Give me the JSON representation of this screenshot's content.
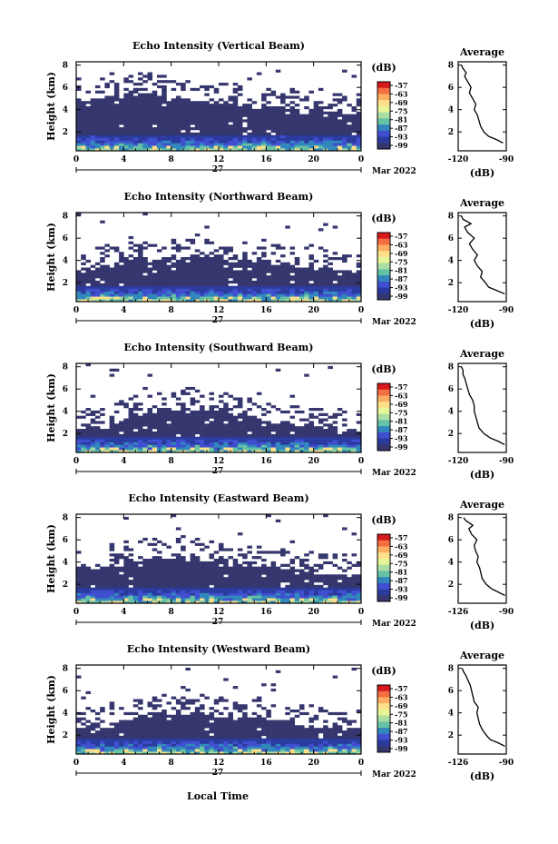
{
  "figure": {
    "xlabel": "Local Time",
    "date_label": "Mar 2022",
    "day_label": "27"
  },
  "colorbar": {
    "unit": "(dB)",
    "ticks": [
      "-57",
      "-63",
      "-69",
      "-75",
      "-81",
      "-87",
      "-93",
      "-99"
    ],
    "colors": [
      "#d7191c",
      "#f46d43",
      "#fdae61",
      "#fee08b",
      "#e6f598",
      "#abdda4",
      "#66c2a5",
      "#3288bd",
      "#3f4fd0",
      "#2b3a9e",
      "#35366e"
    ]
  },
  "chart_data": [
    {
      "type": "heatmap",
      "title": "Echo Intensity (Vertical Beam)",
      "ylabel": "Height (km)",
      "x_ticks": [
        "0",
        "4",
        "8",
        "12",
        "16",
        "20",
        "0"
      ],
      "y_ticks": [
        "2",
        "4",
        "6",
        "8"
      ],
      "xlim": [
        0,
        24
      ],
      "ylim": [
        0.3,
        8.3
      ],
      "echo_top_km": [
        4.9,
        4.9,
        5.0,
        5.1,
        5.2,
        5.3,
        5.2,
        5.1,
        5.0,
        4.9,
        4.8,
        4.7,
        4.6,
        4.5,
        4.4,
        4.3,
        4.2,
        4.1,
        4.0,
        3.9,
        3.8,
        3.7,
        3.6,
        3.5
      ],
      "profile": {
        "title": "Average",
        "xlabel": "(dB)",
        "x_ticks": [
          "-120",
          "-90"
        ],
        "y_ticks": [
          "2",
          "4",
          "6",
          "8"
        ],
        "xlim": [
          -120,
          -90
        ],
        "ylim": [
          0.3,
          8.3
        ],
        "x": [
          -92,
          -96,
          -101,
          -104,
          -106,
          -107,
          -108,
          -110,
          -109,
          -111,
          -113,
          -112,
          -114,
          -116,
          -115,
          -117,
          -118
        ],
        "y": [
          1.0,
          1.3,
          1.6,
          2.0,
          2.5,
          3.0,
          3.5,
          4.0,
          4.5,
          5.0,
          5.5,
          6.0,
          6.5,
          7.0,
          7.3,
          7.7,
          8.0
        ]
      }
    },
    {
      "type": "heatmap",
      "title": "Echo Intensity (Northward Beam)",
      "ylabel": "Height (km)",
      "x_ticks": [
        "0",
        "4",
        "8",
        "12",
        "16",
        "20",
        "0"
      ],
      "y_ticks": [
        "2",
        "4",
        "6",
        "8"
      ],
      "xlim": [
        0,
        24
      ],
      "ylim": [
        0.3,
        8.3
      ],
      "echo_top_km": [
        3.2,
        3.3,
        3.4,
        3.6,
        3.8,
        4.0,
        4.1,
        4.2,
        4.3,
        4.4,
        4.4,
        4.3,
        4.2,
        4.1,
        4.0,
        3.9,
        3.8,
        3.7,
        3.6,
        3.5,
        3.4,
        3.3,
        3.2,
        3.2
      ],
      "profile": {
        "title": "Average",
        "xlabel": "(dB)",
        "x_ticks": [
          "-120",
          "-90"
        ],
        "y_ticks": [
          "2",
          "4",
          "6",
          "8"
        ],
        "xlim": [
          -120,
          -90
        ],
        "ylim": [
          0.3,
          8.3
        ],
        "x": [
          -91,
          -96,
          -101,
          -103,
          -106,
          -105,
          -108,
          -110,
          -108,
          -111,
          -113,
          -110,
          -114,
          -116,
          -112,
          -117,
          -118
        ],
        "y": [
          1.0,
          1.3,
          1.6,
          2.0,
          2.5,
          3.0,
          3.5,
          4.0,
          4.5,
          5.0,
          5.5,
          6.0,
          6.5,
          7.0,
          7.3,
          7.7,
          8.0
        ]
      }
    },
    {
      "type": "heatmap",
      "title": "Echo Intensity (Southward Beam)",
      "ylabel": "Height (km)",
      "x_ticks": [
        "0",
        "4",
        "8",
        "12",
        "16",
        "20",
        "0"
      ],
      "y_ticks": [
        "2",
        "4",
        "6",
        "8"
      ],
      "xlim": [
        0,
        24
      ],
      "ylim": [
        0.3,
        8.3
      ],
      "echo_top_km": [
        2.4,
        2.5,
        2.6,
        3.2,
        3.6,
        3.8,
        4.0,
        4.1,
        4.2,
        4.2,
        4.1,
        4.0,
        3.9,
        3.8,
        3.6,
        3.4,
        3.2,
        3.0,
        2.8,
        2.6,
        2.5,
        2.4,
        2.3,
        2.3
      ],
      "profile": {
        "title": "Average",
        "xlabel": "(dB)",
        "x_ticks": [
          "-120",
          "-90"
        ],
        "y_ticks": [
          "2",
          "4",
          "6",
          "8"
        ],
        "xlim": [
          -120,
          -90
        ],
        "ylim": [
          0.3,
          8.3
        ],
        "x": [
          -91,
          -95,
          -100,
          -104,
          -107,
          -108,
          -109,
          -110,
          -110,
          -111,
          -113,
          -114,
          -115,
          -116,
          -117,
          -117,
          -118
        ],
        "y": [
          1.0,
          1.3,
          1.6,
          2.0,
          2.5,
          3.0,
          3.5,
          4.0,
          4.5,
          5.0,
          5.5,
          6.0,
          6.5,
          7.0,
          7.3,
          7.7,
          8.0
        ]
      }
    },
    {
      "type": "heatmap",
      "title": "Echo Intensity (Eastward Beam)",
      "ylabel": "Height (km)",
      "x_ticks": [
        "0",
        "4",
        "8",
        "12",
        "16",
        "20",
        "0"
      ],
      "y_ticks": [
        "2",
        "4",
        "6",
        "8"
      ],
      "xlim": [
        0,
        24
      ],
      "ylim": [
        0.3,
        8.3
      ],
      "echo_top_km": [
        3.4,
        3.5,
        3.7,
        3.9,
        4.1,
        4.3,
        4.4,
        4.4,
        4.3,
        4.2,
        4.1,
        4.0,
        3.9,
        3.8,
        3.7,
        3.6,
        3.5,
        3.4,
        3.3,
        3.2,
        3.1,
        3.0,
        2.9,
        2.8
      ],
      "profile": {
        "title": "Average",
        "xlabel": "(dB)",
        "x_ticks": [
          "-126",
          "-90"
        ],
        "y_ticks": [
          "2",
          "4",
          "6",
          "8"
        ],
        "xlim": [
          -126,
          -90
        ],
        "ylim": [
          0.3,
          8.3
        ],
        "x": [
          -91,
          -96,
          -101,
          -105,
          -108,
          -109,
          -110,
          -112,
          -111,
          -113,
          -114,
          -112,
          -116,
          -118,
          -115,
          -120,
          -122
        ],
        "y": [
          1.0,
          1.3,
          1.6,
          2.0,
          2.5,
          3.0,
          3.5,
          4.0,
          4.5,
          5.0,
          5.5,
          6.0,
          6.5,
          7.0,
          7.3,
          7.7,
          8.0
        ]
      }
    },
    {
      "type": "heatmap",
      "title": "Echo Intensity (Westward Beam)",
      "ylabel": "Height (km)",
      "x_ticks": [
        "0",
        "4",
        "8",
        "12",
        "16",
        "20",
        "0"
      ],
      "y_ticks": [
        "2",
        "4",
        "6",
        "8"
      ],
      "xlim": [
        0,
        24
      ],
      "ylim": [
        0.3,
        8.3
      ],
      "echo_top_km": [
        2.6,
        2.7,
        2.9,
        3.2,
        3.5,
        3.7,
        3.9,
        4.0,
        4.1,
        4.1,
        4.0,
        3.9,
        3.8,
        3.7,
        3.6,
        3.5,
        3.3,
        3.1,
        3.0,
        2.9,
        2.8,
        2.7,
        2.6,
        2.6
      ],
      "profile": {
        "title": "Average",
        "xlabel": "(dB)",
        "x_ticks": [
          "-126",
          "-90"
        ],
        "y_ticks": [
          "2",
          "4",
          "6",
          "8"
        ],
        "xlim": [
          -126,
          -90
        ],
        "ylim": [
          0.3,
          8.3
        ],
        "x": [
          -91,
          -96,
          -102,
          -105,
          -108,
          -110,
          -111,
          -112,
          -111,
          -114,
          -115,
          -116,
          -117,
          -119,
          -120,
          -122,
          -123
        ],
        "y": [
          1.0,
          1.3,
          1.6,
          2.0,
          2.5,
          3.0,
          3.5,
          4.0,
          4.5,
          5.0,
          5.5,
          6.0,
          6.5,
          7.0,
          7.3,
          7.7,
          8.0
        ]
      }
    }
  ]
}
